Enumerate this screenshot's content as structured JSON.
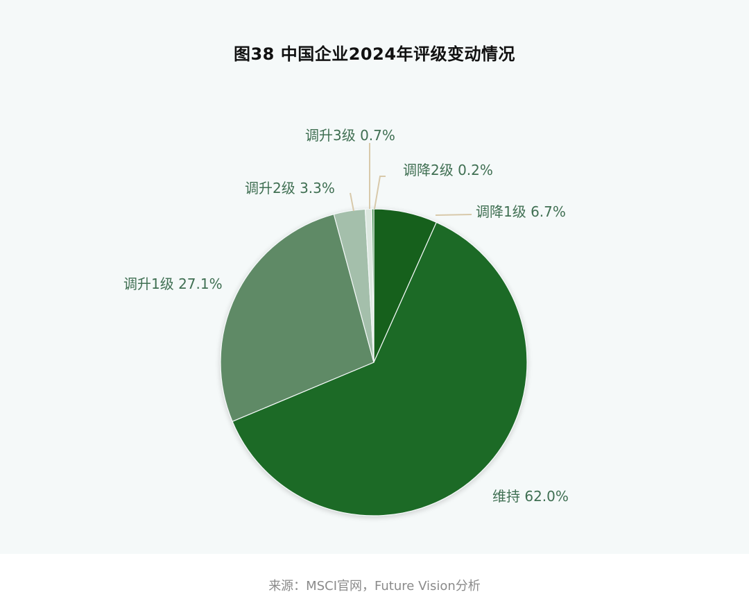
{
  "chart_data": {
    "type": "pie",
    "title": "图38  中国企业2024年评级变动情况",
    "slices": [
      {
        "label": "调降1级 6.7%",
        "value": 6.7,
        "color": "#17601f"
      },
      {
        "label": "维持 62.0%",
        "value": 62.0,
        "color": "#1a6b26"
      },
      {
        "label": "调升1级 27.1%",
        "value": 27.1,
        "color": "#5e8a66"
      },
      {
        "label": "调升2级 3.3%",
        "value": 3.3,
        "color": "#a4bfab"
      },
      {
        "label": "调升3级 0.7%",
        "value": 0.7,
        "color": "#dde8e0"
      },
      {
        "label": "调降2级 0.2%",
        "value": 0.2,
        "color": "#3d8a47"
      }
    ],
    "colors": {
      "label_text": "#3f6f52",
      "leader_line": "#d8c9aa",
      "panel_background": "#f5f9f9"
    }
  },
  "source": "来源：MSCI官网，Future Vision分析"
}
